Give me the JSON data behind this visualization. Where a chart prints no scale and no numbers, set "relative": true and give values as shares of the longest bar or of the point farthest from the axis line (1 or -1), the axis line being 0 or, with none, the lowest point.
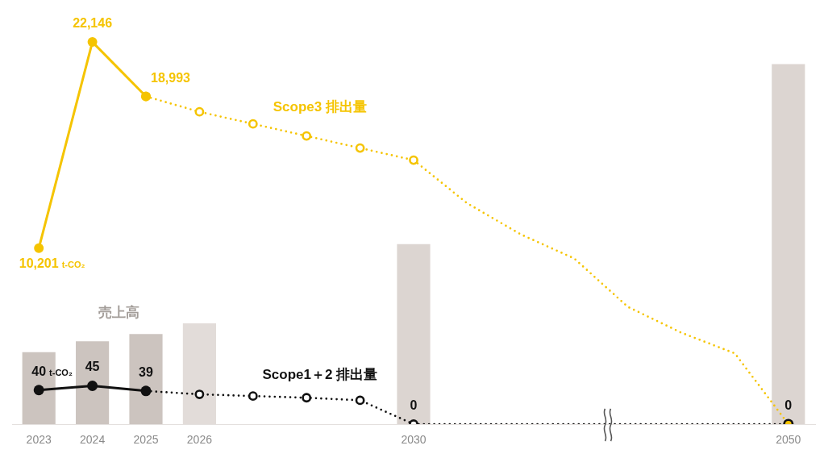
{
  "chart_data": [
    {
      "type": "bar",
      "relative": true,
      "categories": [
        "2023",
        "2024",
        "2025",
        "2026",
        null,
        null,
        null,
        "2030",
        null,
        null,
        null,
        null,
        null,
        null,
        "2050"
      ],
      "tick_labels": "x",
      "series": [
        {
          "name": "売上高",
          "colors": [
            "#ccc4bf",
            "#ccc4bf",
            "#ccc4bf",
            "#e2dcd9",
            null,
            null,
            null,
            "#dcd5d1",
            null,
            null,
            null,
            null,
            null,
            null,
            "#dcd5d1"
          ],
          "values": [
            0.2,
            0.23,
            0.25,
            0.28,
            null,
            null,
            null,
            0.5,
            null,
            null,
            null,
            null,
            null,
            null,
            1
          ]
        }
      ]
    },
    {
      "type": "line",
      "categories": [
        "2023",
        "2024",
        "2025",
        "2026",
        null,
        null,
        null,
        "2030",
        null,
        null,
        null,
        null,
        null,
        null,
        "2050"
      ],
      "tick_labels": false,
      "marker": "circle",
      "series": [
        {
          "color": "#f5c400",
          "line_style": "dotted",
          "marker": "none",
          "values": [
            null,
            null,
            null,
            null,
            null,
            null,
            null,
            15300,
            12800,
            11000,
            9600,
            6800,
            5300,
            4100,
            0
          ]
        },
        {
          "name": "Scope3 排出量",
          "color": "#f5c400",
          "line_style": "dotted",
          "values": [
            null,
            null,
            18993,
            18100,
            17400,
            16700,
            16000,
            15300,
            null,
            null,
            null,
            null,
            null,
            null,
            null
          ]
        },
        {
          "color": "#f5c400",
          "line_style": "solid",
          "values": [
            10201,
            22146,
            18993,
            null,
            null,
            null,
            null,
            null,
            null,
            null,
            null,
            null,
            null,
            null,
            null
          ],
          "value_labels": [
            "10,201 t-CO₂",
            "22,146",
            "18,993",
            null,
            null,
            null,
            null,
            null,
            null,
            null,
            null,
            null,
            null,
            null,
            null
          ]
        },
        {
          "axis": "y2",
          "color": "#111111",
          "line_style": "dotted",
          "marker": "none",
          "values": [
            null,
            null,
            null,
            null,
            null,
            null,
            null,
            0,
            0,
            0,
            0,
            0,
            0,
            0,
            0
          ],
          "value_labels": [
            null,
            null,
            null,
            null,
            null,
            null,
            null,
            null,
            null,
            null,
            null,
            null,
            null,
            null,
            "0"
          ]
        },
        {
          "name": "Scope1＋2 排出量",
          "axis": "y2",
          "color": "#111111",
          "line_style": "dotted",
          "values": [
            null,
            null,
            39,
            35,
            33,
            31,
            28,
            0,
            null,
            null,
            null,
            null,
            null,
            null,
            null
          ],
          "value_labels": [
            null,
            null,
            null,
            null,
            null,
            null,
            null,
            "0",
            null,
            null,
            null,
            null,
            null,
            null,
            null
          ]
        },
        {
          "axis": "y2",
          "color": "#111111",
          "line_style": "solid",
          "values": [
            40,
            45,
            39,
            null,
            null,
            null,
            null,
            null,
            null,
            null,
            null,
            null,
            null,
            null,
            null
          ],
          "value_labels": [
            "40 t-CO₂",
            "45",
            "39",
            null,
            null,
            null,
            null,
            null,
            null,
            null,
            null,
            null,
            null,
            null,
            null
          ]
        },
        {
          "type": "scatter",
          "axis": "y2",
          "color": "#111111",
          "values": [
            null,
            null,
            null,
            null,
            null,
            null,
            null,
            null,
            null,
            null,
            null,
            null,
            null,
            null,
            0
          ]
        },
        {
          "type": "scatter",
          "color": "#f5c400",
          "values": [
            null,
            null,
            null,
            null,
            null,
            null,
            null,
            null,
            null,
            null,
            null,
            null,
            null,
            null,
            0
          ]
        }
      ]
    }
  ]
}
